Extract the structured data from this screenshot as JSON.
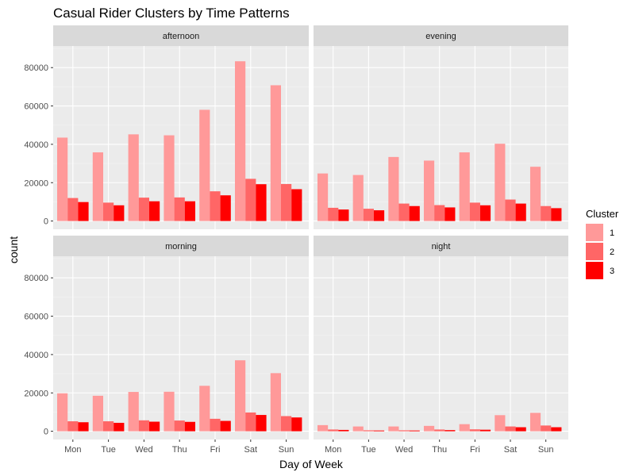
{
  "chart_data": {
    "type": "bar",
    "title": "Casual Rider Clusters by Time Patterns",
    "xlabel": "Day of Week",
    "ylabel": "count",
    "ylim": [
      0,
      90000
    ],
    "y_ticks": [
      "0",
      "20000",
      "40000",
      "60000",
      "80000"
    ],
    "y_tick_values": [
      0,
      20000,
      40000,
      60000,
      80000
    ],
    "categories": [
      "Mon",
      "Tue",
      "Wed",
      "Thu",
      "Fri",
      "Sat",
      "Sun"
    ],
    "grid": true,
    "legend": {
      "title": "Cluster",
      "position": "right",
      "entries": [
        "1",
        "2",
        "3"
      ]
    },
    "colors": {
      "1": "#ff9999",
      "2": "#ff6666",
      "3": "#ff0000",
      "panel_bg": "#ebebeb",
      "strip_bg": "#d9d9d9",
      "grid_major": "#ffffff"
    },
    "panels": [
      {
        "facet": "afternoon",
        "series": [
          {
            "name": "1",
            "values": [
              43500,
              35800,
              45200,
              44700,
              58000,
              83300,
              70800
            ]
          },
          {
            "name": "2",
            "values": [
              12000,
              9600,
              12200,
              12300,
              15500,
              22000,
              19300
            ]
          },
          {
            "name": "3",
            "values": [
              9900,
              8200,
              10300,
              10300,
              13400,
              19200,
              16600
            ]
          }
        ]
      },
      {
        "facet": "evening",
        "series": [
          {
            "name": "1",
            "values": [
              24800,
              24000,
              33400,
              31500,
              35800,
              40300,
              28300
            ]
          },
          {
            "name": "2",
            "values": [
              6900,
              6400,
              9100,
              8300,
              9600,
              11200,
              7800
            ]
          },
          {
            "name": "3",
            "values": [
              6000,
              5600,
              7800,
              7100,
              8200,
              9100,
              6700
            ]
          }
        ]
      },
      {
        "facet": "morning",
        "series": [
          {
            "name": "1",
            "values": [
              19800,
              18500,
              20500,
              20600,
              23700,
              37000,
              30300
            ]
          },
          {
            "name": "2",
            "values": [
              5200,
              5200,
              5700,
              5600,
              6500,
              9800,
              7900
            ]
          },
          {
            "name": "3",
            "values": [
              4700,
              4400,
              5000,
              4900,
              5400,
              8500,
              7200
            ]
          }
        ]
      },
      {
        "facet": "night",
        "series": [
          {
            "name": "1",
            "values": [
              3200,
              2500,
              2500,
              2800,
              3700,
              8400,
              9600
            ]
          },
          {
            "name": "2",
            "values": [
              900,
              500,
              500,
              900,
              1000,
              2500,
              3000
            ]
          },
          {
            "name": "3",
            "values": [
              700,
              400,
              400,
              600,
              800,
              2100,
              2100
            ]
          }
        ]
      }
    ]
  }
}
